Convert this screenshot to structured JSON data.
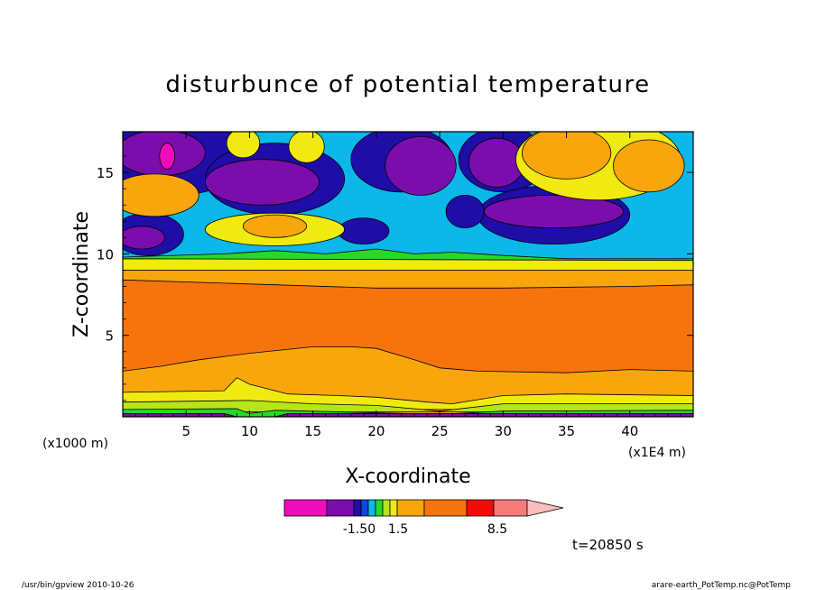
{
  "chart_data": {
    "type": "heatmap",
    "title": "disturbunce of potential temperature",
    "xlabel": "X-coordinate",
    "ylabel": "Z-coordinate",
    "x_unit_left": "(x1000 m)",
    "x_unit_right": "(x1E4 m)",
    "xlim": [
      0,
      45
    ],
    "ylim": [
      0,
      17.5
    ],
    "x_ticks": [
      "5",
      "10",
      "15",
      "20",
      "25",
      "30",
      "35",
      "40"
    ],
    "y_ticks": [
      "5",
      "10",
      "15"
    ],
    "x_tick_values": [
      5,
      10,
      15,
      20,
      25,
      30,
      35,
      40
    ],
    "y_tick_values": [
      5,
      10,
      15
    ],
    "time_label": "t=20850 s",
    "footer_left": "/usr/bin/gpview  2010-10-26",
    "footer_right": "arare-earth_PotTemp.nc@PotTemp",
    "colorbar": {
      "colors": [
        "#ee0dbb",
        "#7a0dac",
        "#1f0da8",
        "#0d44e2",
        "#0cb7e9",
        "#27d927",
        "#b6e51a",
        "#f0ea10",
        "#f8a60c",
        "#f7730d",
        "#f50a0a",
        "#f77b7b",
        "#f9bdbd"
      ],
      "labels": [
        "-1.50",
        "1.5",
        "8.5"
      ]
    },
    "layers": [
      {
        "color": "#f8a60c",
        "lower": [
          [
            0,
            0.5
          ],
          [
            45,
            0.5
          ]
        ],
        "upper": [
          [
            0,
            9.0
          ],
          [
            45,
            9.0
          ]
        ]
      },
      {
        "color": "#f0ea10",
        "lower": [
          [
            0,
            0.45
          ],
          [
            45,
            0.45
          ]
        ],
        "upper": [
          [
            0,
            1.5
          ],
          [
            8,
            1.6
          ],
          [
            9,
            2.4
          ],
          [
            10,
            2.0
          ],
          [
            13,
            1.4
          ],
          [
            17,
            1.3
          ],
          [
            20,
            1.2
          ],
          [
            24,
            0.9
          ],
          [
            26,
            0.8
          ],
          [
            30,
            1.3
          ],
          [
            35,
            1.4
          ],
          [
            45,
            1.3
          ]
        ]
      },
      {
        "color": "#f7730d",
        "lower": [
          [
            0,
            2.8
          ],
          [
            3,
            3.1
          ],
          [
            6,
            3.5
          ],
          [
            10,
            3.9
          ],
          [
            15,
            4.3
          ],
          [
            18,
            4.3
          ],
          [
            20,
            4.2
          ],
          [
            23,
            3.5
          ],
          [
            25,
            3.0
          ],
          [
            28,
            2.8
          ],
          [
            35,
            2.7
          ],
          [
            40,
            2.9
          ],
          [
            45,
            2.8
          ]
        ],
        "upper": [
          [
            0,
            8.4
          ],
          [
            8,
            8.2
          ],
          [
            12,
            8.1
          ],
          [
            20,
            7.9
          ],
          [
            30,
            7.9
          ],
          [
            40,
            8.0
          ],
          [
            45,
            8.1
          ]
        ]
      },
      {
        "color": "#b6e51a",
        "lower": [
          [
            0,
            0.3
          ],
          [
            45,
            0.3
          ]
        ],
        "upper": [
          [
            0,
            0.9
          ],
          [
            10,
            1.0
          ],
          [
            15,
            0.8
          ],
          [
            20,
            0.7
          ],
          [
            25,
            0.35
          ],
          [
            30,
            0.8
          ],
          [
            45,
            0.8
          ]
        ]
      },
      {
        "color": "#27d927",
        "lower": [
          [
            0,
            0.0
          ],
          [
            45,
            0.0
          ]
        ],
        "upper": [
          [
            0,
            0.45
          ],
          [
            9,
            0.5
          ],
          [
            10,
            0.2
          ],
          [
            12,
            0.4
          ],
          [
            25,
            0.15
          ],
          [
            30,
            0.35
          ],
          [
            45,
            0.4
          ]
        ]
      },
      {
        "color": "#7a0dac",
        "lower": [
          [
            0,
            0.0
          ],
          [
            45,
            0.0
          ]
        ],
        "upper": [
          [
            0,
            0.2
          ],
          [
            8,
            0.2
          ],
          [
            9,
            0.0
          ],
          [
            12,
            0.0
          ],
          [
            13,
            0.2
          ],
          [
            45,
            0.2
          ]
        ]
      },
      {
        "color": "#27d927",
        "lower": [
          [
            0,
            9.1
          ],
          [
            45,
            9.1
          ]
        ],
        "upper": [
          [
            0,
            17.5
          ],
          [
            45,
            17.5
          ]
        ]
      },
      {
        "color": "#f0ea10",
        "lower": [
          [
            0,
            9.0
          ],
          [
            45,
            9.0
          ]
        ],
        "upper": [
          [
            0,
            9.7
          ],
          [
            45,
            9.6
          ]
        ]
      },
      {
        "color": "#0cb7e9",
        "lower": [
          [
            0,
            9.8
          ],
          [
            8,
            10.0
          ],
          [
            12,
            10.2
          ],
          [
            16,
            10.0
          ],
          [
            20,
            10.3
          ],
          [
            23,
            10.0
          ],
          [
            26,
            10.1
          ],
          [
            30,
            9.9
          ],
          [
            35,
            9.7
          ],
          [
            45,
            9.7
          ]
        ],
        "upper": [
          [
            0,
            17.5
          ],
          [
            45,
            17.5
          ]
        ]
      }
    ],
    "blobs": [
      {
        "color": "#1f0da8",
        "cx": 4,
        "cy": 16,
        "rx": 6,
        "ry": 2.4
      },
      {
        "color": "#1f0da8",
        "cx": 12,
        "cy": 14.6,
        "rx": 5.5,
        "ry": 2.2
      },
      {
        "color": "#1f0da8",
        "cx": 22,
        "cy": 15.8,
        "rx": 4,
        "ry": 2
      },
      {
        "color": "#1f0da8",
        "cx": 30,
        "cy": 15.8,
        "rx": 3.5,
        "ry": 2
      },
      {
        "color": "#1f0da8",
        "cx": 34,
        "cy": 12.4,
        "rx": 6,
        "ry": 1.8
      },
      {
        "color": "#1f0da8",
        "cx": 2,
        "cy": 11.2,
        "rx": 2.8,
        "ry": 1.3
      },
      {
        "color": "#1f0da8",
        "cx": 19,
        "cy": 11.4,
        "rx": 2,
        "ry": 0.8
      },
      {
        "color": "#1f0da8",
        "cx": 27,
        "cy": 12.6,
        "rx": 1.5,
        "ry": 1
      },
      {
        "color": "#7a0dac",
        "cx": 3,
        "cy": 16.2,
        "rx": 3.5,
        "ry": 1.4
      },
      {
        "color": "#7a0dac",
        "cx": 11,
        "cy": 14.4,
        "rx": 4.5,
        "ry": 1.4
      },
      {
        "color": "#7a0dac",
        "cx": 23.5,
        "cy": 15.4,
        "rx": 2.8,
        "ry": 1.8
      },
      {
        "color": "#7a0dac",
        "cx": 29.5,
        "cy": 15.6,
        "rx": 2.2,
        "ry": 1.5
      },
      {
        "color": "#7a0dac",
        "cx": 34,
        "cy": 12.6,
        "rx": 5.5,
        "ry": 1.0
      },
      {
        "color": "#7a0dac",
        "cx": 1.5,
        "cy": 11.0,
        "rx": 1.8,
        "ry": 0.7
      },
      {
        "color": "#ee0dbb",
        "cx": 3.5,
        "cy": 16.0,
        "rx": 0.6,
        "ry": 0.8
      },
      {
        "color": "#f8a60c",
        "cx": 2.5,
        "cy": 13.6,
        "rx": 3.5,
        "ry": 1.3
      },
      {
        "color": "#f0ea10",
        "cx": 12,
        "cy": 11.5,
        "rx": 5.5,
        "ry": 1.0
      },
      {
        "color": "#f8a60c",
        "cx": 12,
        "cy": 11.7,
        "rx": 2.5,
        "ry": 0.7
      },
      {
        "color": "#f0ea10",
        "cx": 37.5,
        "cy": 15.8,
        "rx": 6.5,
        "ry": 2.5
      },
      {
        "color": "#f8a60c",
        "cx": 35,
        "cy": 16.2,
        "rx": 3.5,
        "ry": 1.6
      },
      {
        "color": "#f8a60c",
        "cx": 41.5,
        "cy": 15.4,
        "rx": 2.8,
        "ry": 1.6
      },
      {
        "color": "#f0ea10",
        "cx": 9.5,
        "cy": 16.8,
        "rx": 1.3,
        "ry": 0.9
      },
      {
        "color": "#f0ea10",
        "cx": 14.5,
        "cy": 16.6,
        "rx": 1.4,
        "ry": 1.0
      }
    ]
  }
}
